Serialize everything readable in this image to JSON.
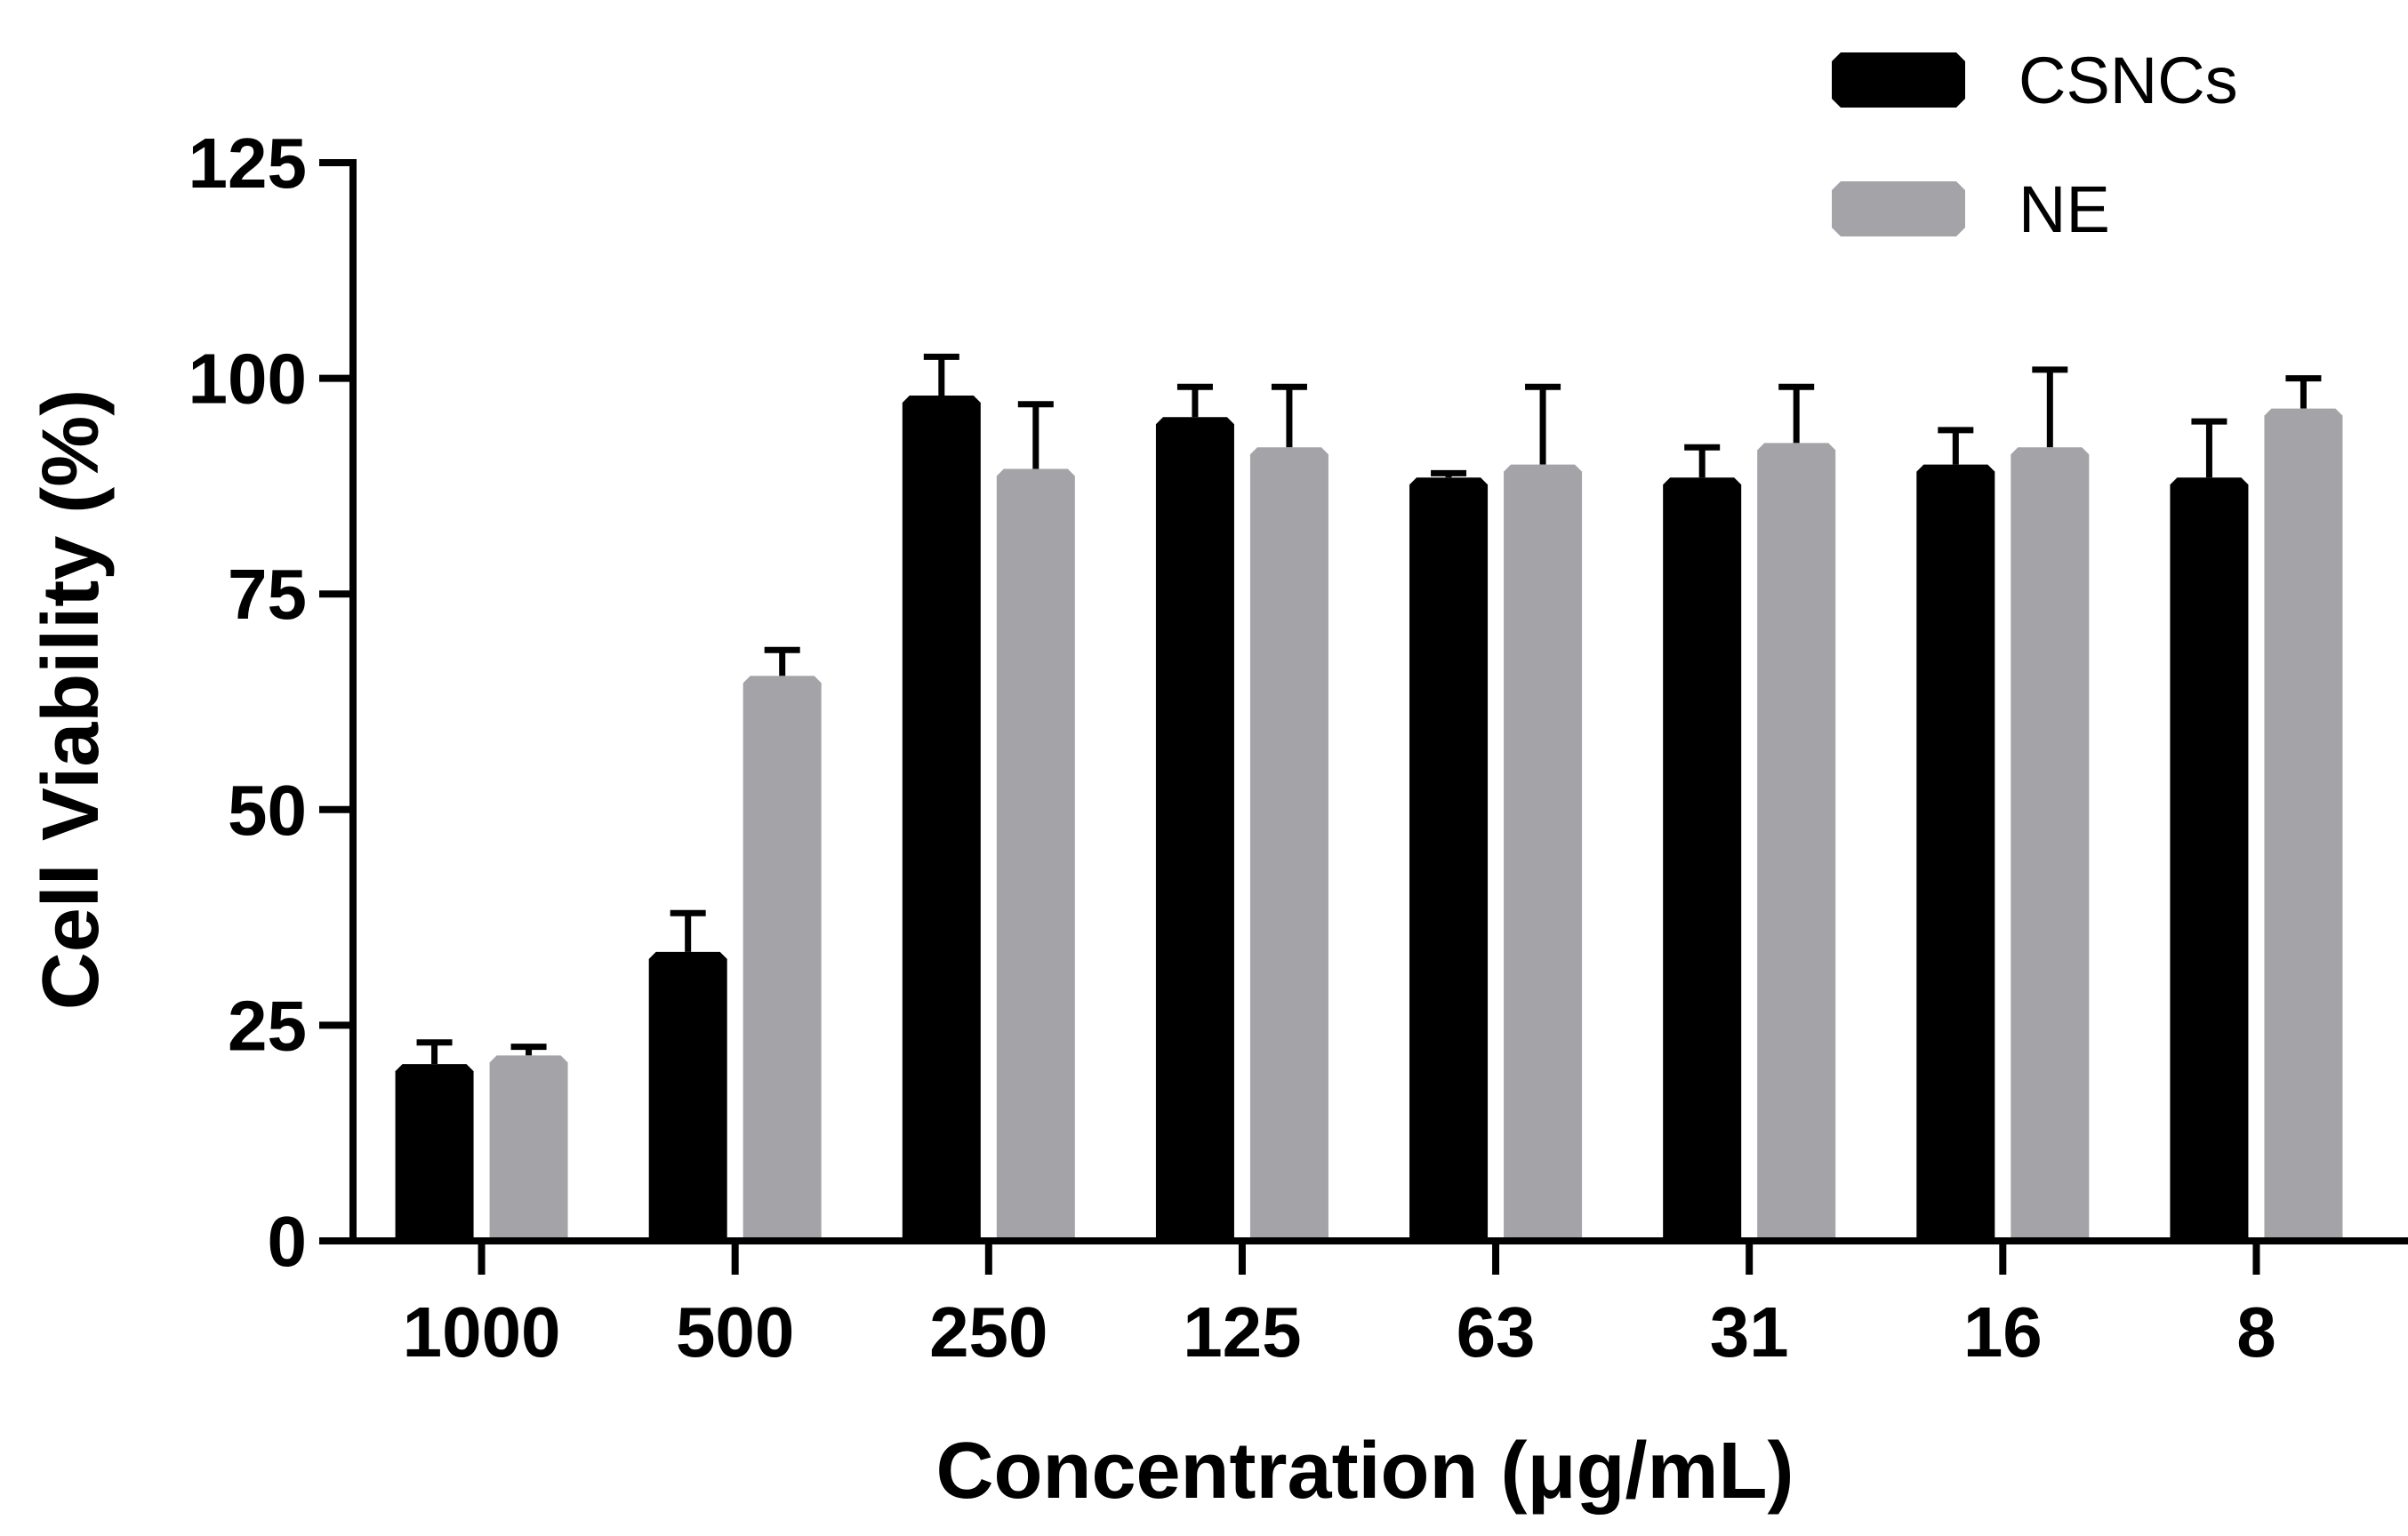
{
  "chart_data": {
    "type": "bar",
    "title": "",
    "xlabel": "Concentration (μg/mL)",
    "ylabel": "Cell Viability (%)",
    "ylim": [
      0,
      125
    ],
    "yticks": [
      "0",
      "25",
      "50",
      "75",
      "100",
      "125"
    ],
    "ytick_values": [
      0,
      25,
      50,
      75,
      100,
      125
    ],
    "categories": [
      "1000",
      "500",
      "250",
      "125",
      "63",
      "31",
      "16",
      "8"
    ],
    "series": [
      {
        "name": "CSNCs",
        "color": "#000000",
        "values": [
          20.5,
          33.5,
          98,
          95.5,
          88.5,
          88.5,
          90,
          88.5
        ],
        "errors": [
          2.5,
          4.5,
          4.5,
          3.5,
          0.5,
          3.5,
          4,
          6.5
        ]
      },
      {
        "name": "NE",
        "color": "#a3a3a8",
        "values": [
          21.5,
          65.5,
          89.5,
          92,
          90,
          92.5,
          92,
          96.5
        ],
        "errors": [
          1,
          3,
          7.5,
          7,
          9,
          6.5,
          9,
          3.5
        ]
      }
    ],
    "legend": {
      "position": "top-right"
    }
  }
}
